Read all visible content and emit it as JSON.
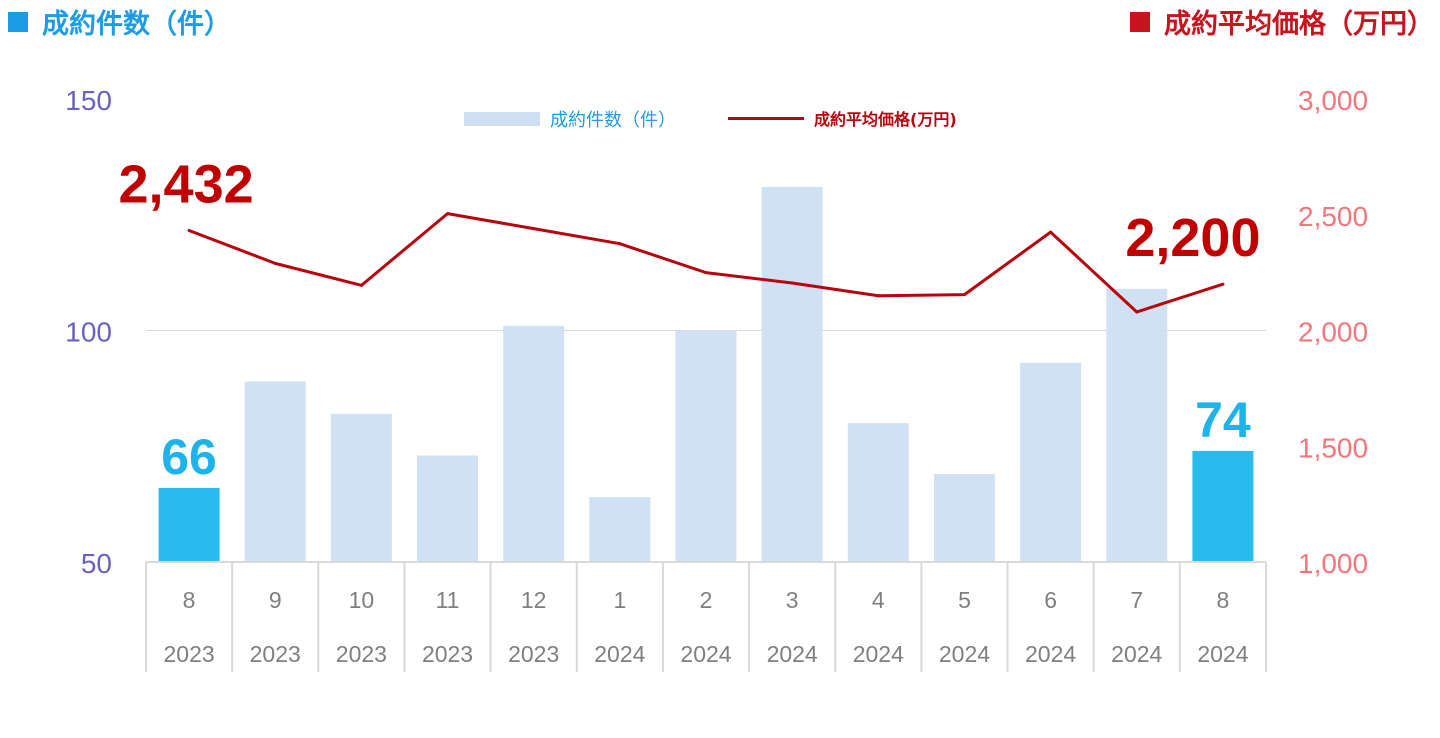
{
  "header": {
    "left_title": "成約件数（件）",
    "right_title": "成約平均価格（万円）",
    "left_color": "#1d9ce6",
    "right_color": "#c8141e"
  },
  "legend": {
    "bar_label": "成約件数（件）",
    "line_label": "成約平均価格(万円)"
  },
  "chart_data": {
    "type": "bar",
    "categories": [
      {
        "month": "8",
        "year": "2023"
      },
      {
        "month": "9",
        "year": "2023"
      },
      {
        "month": "10",
        "year": "2023"
      },
      {
        "month": "11",
        "year": "2023"
      },
      {
        "month": "12",
        "year": "2023"
      },
      {
        "month": "1",
        "year": "2024"
      },
      {
        "month": "2",
        "year": "2024"
      },
      {
        "month": "3",
        "year": "2024"
      },
      {
        "month": "4",
        "year": "2024"
      },
      {
        "month": "5",
        "year": "2024"
      },
      {
        "month": "6",
        "year": "2024"
      },
      {
        "month": "7",
        "year": "2024"
      },
      {
        "month": "8",
        "year": "2024"
      }
    ],
    "series": [
      {
        "name": "成約件数（件）",
        "type": "bar",
        "axis": "left",
        "values": [
          66,
          89,
          82,
          73,
          101,
          64,
          100,
          131,
          80,
          69,
          93,
          109,
          74
        ],
        "color": "#cfdff3",
        "highlight_color": "#29bbee",
        "highlight_indices": [
          0,
          12
        ]
      },
      {
        "name": "成約平均価格(万円)",
        "type": "line",
        "axis": "right",
        "values": [
          2432,
          2290,
          2195,
          2505,
          2440,
          2375,
          2250,
          2205,
          2150,
          2155,
          2425,
          2080,
          2200
        ],
        "color": "#b7040f"
      }
    ],
    "y_left": {
      "min": 50,
      "max": 150,
      "ticks": [
        "50",
        "100",
        "150"
      ],
      "color": "#6a62bf"
    },
    "y_right": {
      "min": 1000,
      "max": 3000,
      "ticks": [
        "1,000",
        "1,500",
        "2,000",
        "2,500",
        "3,000"
      ],
      "color": "#f2777c"
    },
    "annotations": [
      {
        "series": 1,
        "index": 0,
        "text": "2,432",
        "color": "#c00000"
      },
      {
        "series": 1,
        "index": 12,
        "text": "2,200",
        "color": "#c00000"
      },
      {
        "series": 0,
        "index": 0,
        "text": "66",
        "color": "#1eb3ea"
      },
      {
        "series": 0,
        "index": 12,
        "text": "74",
        "color": "#1eb3ea"
      }
    ],
    "gridlines": [
      100
    ],
    "legend_position": "top-center"
  }
}
